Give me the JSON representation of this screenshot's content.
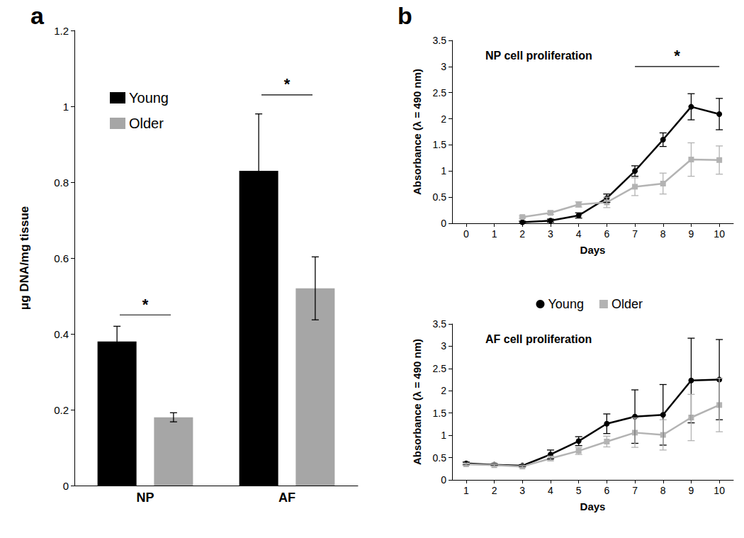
{
  "chart_data": [
    {
      "type": "bar",
      "panel_label": "a",
      "categories": [
        "NP",
        "AF"
      ],
      "y_label": "μg DNA/mg tissue",
      "ylim": [
        0,
        1.2
      ],
      "yticks": [
        0,
        0.2,
        0.4,
        0.6,
        0.8,
        1,
        1.2
      ],
      "grid": false,
      "legend": "upper left",
      "series": [
        {
          "name": "Young",
          "color": "#000000",
          "values": [
            0.38,
            0.83
          ],
          "errors": [
            0.04,
            0.15
          ]
        },
        {
          "name": "Older",
          "color": "#a6a6a6",
          "values": [
            0.18,
            0.52
          ],
          "errors": [
            0.012,
            0.083
          ]
        }
      ],
      "annotations": [
        {
          "text": "*",
          "x_from": "NP",
          "x_to": "NP",
          "y": 0.45
        },
        {
          "text": "*",
          "x_from": "AF",
          "x_to": "AF",
          "y": 1.03
        }
      ]
    },
    {
      "type": "line",
      "panel_label": "b",
      "title": "NP cell proliferation",
      "categories": [
        "0",
        "1",
        "2",
        "3",
        "4",
        "6",
        "7",
        "8",
        "9",
        "10"
      ],
      "x_label": "Days",
      "y_label": "Absorbance (λ = 490 nm)",
      "ylim": [
        0,
        3.5
      ],
      "yticks": [
        0,
        0.5,
        1,
        1.5,
        2,
        2.5,
        3,
        3.5
      ],
      "grid": false,
      "series": [
        {
          "name": "Young",
          "color": "#000000",
          "marker": "circle",
          "values": [
            null,
            null,
            0.02,
            0.05,
            0.15,
            0.48,
            1.0,
            1.6,
            2.23,
            2.09
          ],
          "errors": [
            null,
            null,
            0.02,
            0.03,
            0.05,
            0.08,
            0.1,
            0.13,
            0.25,
            0.3
          ]
        },
        {
          "name": "Older",
          "color": "#b3b3b3",
          "marker": "square",
          "values": [
            null,
            null,
            0.12,
            0.2,
            0.36,
            0.4,
            0.7,
            0.76,
            1.22,
            1.21
          ],
          "errors": [
            null,
            null,
            0.02,
            0.03,
            0.05,
            0.1,
            0.17,
            0.2,
            0.32,
            0.27
          ]
        }
      ],
      "annotations": [
        {
          "text": "*",
          "x_from": "7",
          "x_to": "10",
          "y": 3.0
        }
      ]
    },
    {
      "type": "line",
      "title": "AF cell proliferation",
      "categories": [
        "1",
        "2",
        "3",
        "4",
        "5",
        "6",
        "7",
        "8",
        "9",
        "10"
      ],
      "x_label": "Days",
      "y_label": "Absorbance (λ = 490 nm)",
      "ylim": [
        0,
        3.5
      ],
      "yticks": [
        0,
        0.5,
        1,
        1.5,
        2,
        2.5,
        3,
        3.5
      ],
      "grid": false,
      "legend": "top",
      "series": [
        {
          "name": "Young",
          "color": "#000000",
          "marker": "circle",
          "values": [
            0.37,
            0.34,
            0.32,
            0.57,
            0.87,
            1.26,
            1.42,
            1.46,
            2.23,
            2.25
          ],
          "errors": [
            0.03,
            0.02,
            0.02,
            0.1,
            0.1,
            0.22,
            0.6,
            0.68,
            0.95,
            0.9
          ]
        },
        {
          "name": "Older",
          "color": "#b3b3b3",
          "marker": "square",
          "values": [
            0.35,
            0.33,
            0.3,
            0.48,
            0.65,
            0.86,
            1.06,
            1.01,
            1.4,
            1.68
          ],
          "errors": [
            0.02,
            0.02,
            0.02,
            0.05,
            0.08,
            0.12,
            0.33,
            0.34,
            0.52,
            0.6
          ]
        }
      ]
    }
  ]
}
